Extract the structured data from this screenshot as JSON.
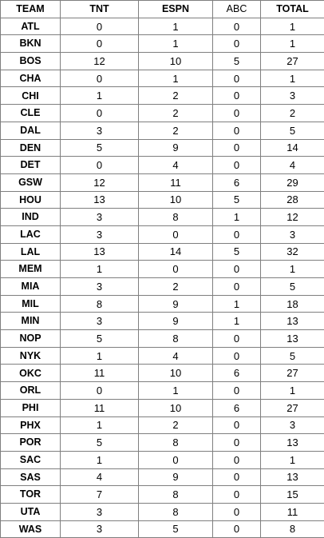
{
  "table": {
    "headers": {
      "team": "TEAM",
      "tnt": "TNT",
      "espn": "ESPN",
      "abc": "ABC",
      "total": "TOTAL"
    },
    "rows": [
      {
        "team": "ATL",
        "tnt": "0",
        "espn": "1",
        "abc": "0",
        "total": "1"
      },
      {
        "team": "BKN",
        "tnt": "0",
        "espn": "1",
        "abc": "0",
        "total": "1"
      },
      {
        "team": "BOS",
        "tnt": "12",
        "espn": "10",
        "abc": "5",
        "total": "27"
      },
      {
        "team": "CHA",
        "tnt": "0",
        "espn": "1",
        "abc": "0",
        "total": "1"
      },
      {
        "team": "CHI",
        "tnt": "1",
        "espn": "2",
        "abc": "0",
        "total": "3"
      },
      {
        "team": "CLE",
        "tnt": "0",
        "espn": "2",
        "abc": "0",
        "total": "2"
      },
      {
        "team": "DAL",
        "tnt": "3",
        "espn": "2",
        "abc": "0",
        "total": "5"
      },
      {
        "team": "DEN",
        "tnt": "5",
        "espn": "9",
        "abc": "0",
        "total": "14"
      },
      {
        "team": "DET",
        "tnt": "0",
        "espn": "4",
        "abc": "0",
        "total": "4"
      },
      {
        "team": "GSW",
        "tnt": "12",
        "espn": "11",
        "abc": "6",
        "total": "29"
      },
      {
        "team": "HOU",
        "tnt": "13",
        "espn": "10",
        "abc": "5",
        "total": "28"
      },
      {
        "team": "IND",
        "tnt": "3",
        "espn": "8",
        "abc": "1",
        "total": "12"
      },
      {
        "team": "LAC",
        "tnt": "3",
        "espn": "0",
        "abc": "0",
        "total": "3"
      },
      {
        "team": "LAL",
        "tnt": "13",
        "espn": "14",
        "abc": "5",
        "total": "32"
      },
      {
        "team": "MEM",
        "tnt": "1",
        "espn": "0",
        "abc": "0",
        "total": "1"
      },
      {
        "team": "MIA",
        "tnt": "3",
        "espn": "2",
        "abc": "0",
        "total": "5"
      },
      {
        "team": "MIL",
        "tnt": "8",
        "espn": "9",
        "abc": "1",
        "total": "18"
      },
      {
        "team": "MIN",
        "tnt": "3",
        "espn": "9",
        "abc": "1",
        "total": "13"
      },
      {
        "team": "NOP",
        "tnt": "5",
        "espn": "8",
        "abc": "0",
        "total": "13"
      },
      {
        "team": "NYK",
        "tnt": "1",
        "espn": "4",
        "abc": "0",
        "total": "5"
      },
      {
        "team": "OKC",
        "tnt": "11",
        "espn": "10",
        "abc": "6",
        "total": "27"
      },
      {
        "team": "ORL",
        "tnt": "0",
        "espn": "1",
        "abc": "0",
        "total": "1"
      },
      {
        "team": "PHI",
        "tnt": "11",
        "espn": "10",
        "abc": "6",
        "total": "27"
      },
      {
        "team": "PHX",
        "tnt": "1",
        "espn": "2",
        "abc": "0",
        "total": "3"
      },
      {
        "team": "POR",
        "tnt": "5",
        "espn": "8",
        "abc": "0",
        "total": "13"
      },
      {
        "team": "SAC",
        "tnt": "1",
        "espn": "0",
        "abc": "0",
        "total": "1"
      },
      {
        "team": "SAS",
        "tnt": "4",
        "espn": "9",
        "abc": "0",
        "total": "13"
      },
      {
        "team": "TOR",
        "tnt": "7",
        "espn": "8",
        "abc": "0",
        "total": "15"
      },
      {
        "team": "UTA",
        "tnt": "3",
        "espn": "8",
        "abc": "0",
        "total": "11"
      },
      {
        "team": "WAS",
        "tnt": "3",
        "espn": "5",
        "abc": "0",
        "total": "8"
      }
    ]
  }
}
